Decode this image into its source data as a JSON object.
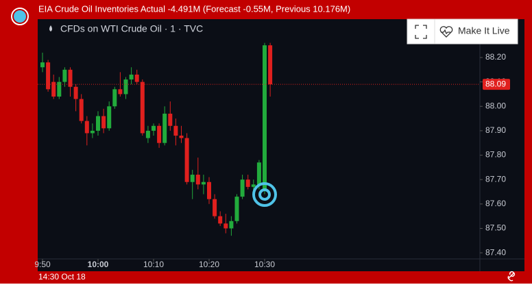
{
  "headline": "EIA Crude Oil Inventories Actual -4.491M (Forecast -0.55M, Previous 10.176M)",
  "footer": "14:30 Oct 18",
  "button": "Make It Live",
  "chart_data": {
    "type": "candlestick",
    "title": "CFDs on WTI Crude Oil · 1 · TVC",
    "up_color": "#22ab3c",
    "down_color": "#e0201e",
    "x": [
      "9:50",
      "9:51",
      "9:52",
      "9:53",
      "9:54",
      "9:55",
      "9:56",
      "9:57",
      "9:58",
      "9:59",
      "10:00",
      "10:01",
      "10:02",
      "10:03",
      "10:04",
      "10:05",
      "10:06",
      "10:07",
      "10:08",
      "10:09",
      "10:10",
      "10:11",
      "10:12",
      "10:13",
      "10:14",
      "10:15",
      "10:16",
      "10:17",
      "10:18",
      "10:19",
      "10:20",
      "10:21",
      "10:22",
      "10:23",
      "10:24",
      "10:25",
      "10:26",
      "10:27",
      "10:28",
      "10:29",
      "10:30",
      "10:31"
    ],
    "open": [
      88.16,
      88.18,
      88.1,
      88.04,
      88.1,
      88.15,
      88.08,
      88.03,
      87.94,
      87.89,
      87.9,
      87.96,
      87.91,
      88.0,
      88.07,
      88.05,
      88.11,
      88.13,
      88.1,
      87.87,
      87.9,
      87.92,
      87.85,
      87.97,
      87.92,
      87.88,
      87.87,
      87.69,
      87.72,
      87.68,
      87.69,
      87.62,
      87.55,
      87.52,
      87.5,
      87.53,
      87.63,
      87.7,
      87.67,
      87.68,
      87.66,
      88.25
    ],
    "high": [
      88.22,
      88.19,
      88.13,
      88.12,
      88.16,
      88.16,
      88.09,
      88.05,
      87.96,
      87.93,
      87.98,
      87.99,
      88.02,
      88.08,
      88.14,
      88.12,
      88.16,
      88.15,
      88.11,
      87.92,
      87.93,
      87.93,
      88.0,
      88.02,
      87.95,
      87.92,
      87.89,
      87.74,
      87.79,
      87.72,
      87.71,
      87.64,
      87.57,
      87.56,
      87.55,
      87.64,
      87.72,
      87.72,
      87.7,
      87.78,
      88.26,
      88.26
    ],
    "low": [
      88.14,
      88.06,
      88.03,
      88.03,
      88.08,
      88.04,
      87.98,
      87.93,
      87.84,
      87.87,
      87.88,
      87.89,
      87.9,
      87.99,
      88.04,
      88.03,
      88.09,
      88.09,
      87.88,
      87.85,
      87.88,
      87.83,
      87.84,
      87.9,
      87.84,
      87.85,
      87.68,
      87.62,
      87.66,
      87.64,
      87.6,
      87.54,
      87.51,
      87.48,
      87.47,
      87.52,
      87.62,
      87.66,
      87.63,
      87.66,
      87.64,
      88.04
    ],
    "close": [
      88.18,
      88.07,
      88.04,
      88.1,
      88.15,
      88.08,
      88.03,
      87.94,
      87.89,
      87.9,
      87.96,
      87.91,
      88.0,
      88.07,
      88.05,
      88.11,
      88.13,
      88.1,
      87.89,
      87.9,
      87.92,
      87.85,
      87.97,
      87.92,
      87.88,
      87.87,
      87.69,
      87.72,
      87.68,
      87.69,
      87.62,
      87.55,
      87.52,
      87.5,
      87.53,
      87.63,
      87.7,
      87.67,
      87.68,
      87.77,
      88.25,
      88.09
    ],
    "last_price": {
      "value": 88.09,
      "label": "88.09"
    },
    "ylim": [
      87.375,
      88.357
    ],
    "yticks": [
      {
        "value": 87.4,
        "label": "87.40"
      },
      {
        "value": 87.5,
        "label": "87.50"
      },
      {
        "value": 87.6,
        "label": "87.60"
      },
      {
        "value": 87.7,
        "label": "87.70"
      },
      {
        "value": 87.8,
        "label": "87.80"
      },
      {
        "value": 87.9,
        "label": "87.90"
      },
      {
        "value": 88.0,
        "label": "88.00"
      },
      {
        "value": 88.1,
        "label": "88.10"
      },
      {
        "value": 88.2,
        "label": "88.20"
      }
    ],
    "xticks": [
      "9:50",
      "10:00",
      "10:10",
      "10:20",
      "10:30"
    ]
  }
}
